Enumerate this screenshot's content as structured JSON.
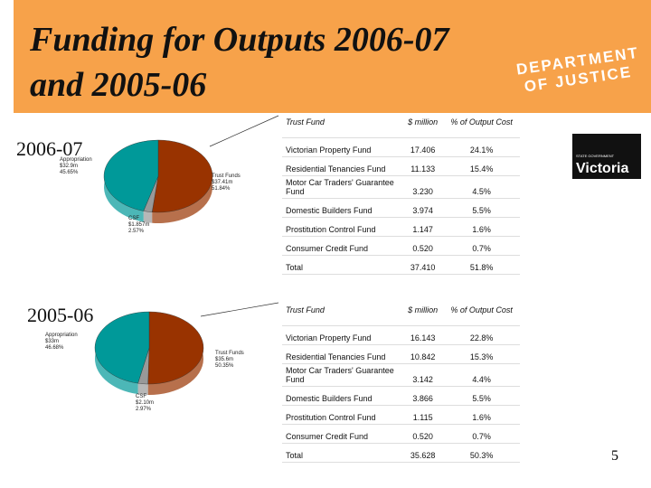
{
  "header": {
    "title_line1": "Funding for Outputs 2006-07",
    "title_line2": "and 2005-06",
    "department": [
      "DEPARTMENT",
      "OF JUSTICE"
    ]
  },
  "logo": {
    "small": "STATE GOVERNMENT",
    "text": "Victoria"
  },
  "sections": [
    {
      "year": "2006-07",
      "pie": {
        "slices": [
          {
            "name": "Trust Funds",
            "amount": "$37.41m",
            "value": 51.84,
            "share": "51.84%",
            "color": "#993300"
          },
          {
            "name": "CSF",
            "amount": "$1.857m",
            "value": 2.57,
            "share": "2.57%",
            "color": "#999999"
          },
          {
            "name": "Appropriation",
            "amount": "$32.9m",
            "value": 45.65,
            "share": "45.65%",
            "color": "#009999"
          }
        ]
      },
      "table": {
        "header": [
          "Trust Fund",
          "$ million",
          "% of Output Cost"
        ],
        "rows": [
          [
            "Victorian Property Fund",
            "17.406",
            "24.1%"
          ],
          [
            "Residential Tenancies Fund",
            "11.133",
            "15.4%"
          ],
          [
            "Motor Car Traders' Guarantee Fund",
            "3.230",
            "4.5%"
          ],
          [
            "Domestic Builders Fund",
            "3.974",
            "5.5%"
          ],
          [
            "Prostitution Control Fund",
            "1.147",
            "1.6%"
          ],
          [
            "Consumer Credit Fund",
            "0.520",
            "0.7%"
          ],
          [
            "Total",
            "37.410",
            "51.8%"
          ]
        ]
      }
    },
    {
      "year": "2005-06",
      "pie": {
        "slices": [
          {
            "name": "Trust Funds",
            "amount": "$35.6m",
            "value": 50.35,
            "share": "50.35%",
            "color": "#993300"
          },
          {
            "name": "CSF",
            "amount": "$2.10m",
            "value": 2.97,
            "share": "2.97%",
            "color": "#999999"
          },
          {
            "name": "Appropriation",
            "amount": "$33m",
            "value": 46.68,
            "share": "46.68%",
            "color": "#009999"
          }
        ]
      },
      "table": {
        "header": [
          "Trust Fund",
          "$ million",
          "% of Output Cost"
        ],
        "rows": [
          [
            "Victorian Property Fund",
            "16.143",
            "22.8%"
          ],
          [
            "Residential Tenancies Fund",
            "10.842",
            "15.3%"
          ],
          [
            "Motor Car Traders' Guarantee Fund",
            "3.142",
            "4.4%"
          ],
          [
            "Domestic Builders Fund",
            "3.866",
            "5.5%"
          ],
          [
            "Prostitution Control Fund",
            "1.115",
            "1.6%"
          ],
          [
            "Consumer Credit Fund",
            "0.520",
            "0.7%"
          ],
          [
            "Total",
            "35.628",
            "50.3%"
          ]
        ]
      }
    }
  ],
  "page_number": "5"
}
